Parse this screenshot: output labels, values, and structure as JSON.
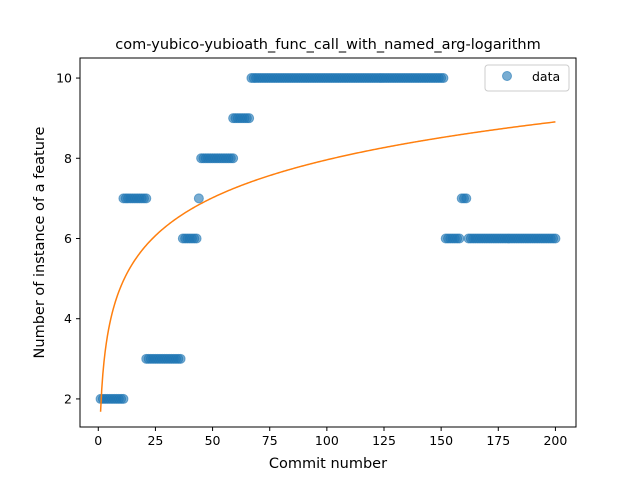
{
  "chart_data": {
    "type": "scatter",
    "title": "com-yubico-yubioath_func_call_with_named_arg-logarithm",
    "xlabel": "Commit number",
    "ylabel": "Number of instance of a feature",
    "xlim": [
      -8,
      209
    ],
    "ylim": [
      1.3,
      10.5
    ],
    "xticks": [
      0,
      25,
      50,
      75,
      100,
      125,
      150,
      175,
      200
    ],
    "yticks": [
      2,
      4,
      6,
      8,
      10
    ],
    "legend": {
      "position": "top-right",
      "entries": [
        "data"
      ]
    },
    "colors": {
      "scatter": "#1f77b4",
      "fit": "#ff7f0e"
    },
    "series": [
      {
        "name": "data",
        "kind": "scatter",
        "segments": [
          {
            "x_start": 1,
            "x_end": 11,
            "y": 2
          },
          {
            "x_start": 11,
            "x_end": 21,
            "y": 7
          },
          {
            "x_start": 21,
            "x_end": 36,
            "y": 3
          },
          {
            "x_start": 37,
            "x_end": 43,
            "y": 6
          },
          {
            "x_start": 44,
            "x_end": 44,
            "y": 7
          },
          {
            "x_start": 45,
            "x_end": 59,
            "y": 8
          },
          {
            "x_start": 59,
            "x_end": 66,
            "y": 9
          },
          {
            "x_start": 67,
            "x_end": 151,
            "y": 10
          },
          {
            "x_start": 152,
            "x_end": 158,
            "y": 6
          },
          {
            "x_start": 159,
            "x_end": 161,
            "y": 7
          },
          {
            "x_start": 162,
            "x_end": 200,
            "y": 6
          }
        ]
      },
      {
        "kind": "line",
        "function": "logarithmic",
        "a": 1.68,
        "b": 1.364,
        "x_range": [
          1,
          200
        ]
      }
    ]
  }
}
